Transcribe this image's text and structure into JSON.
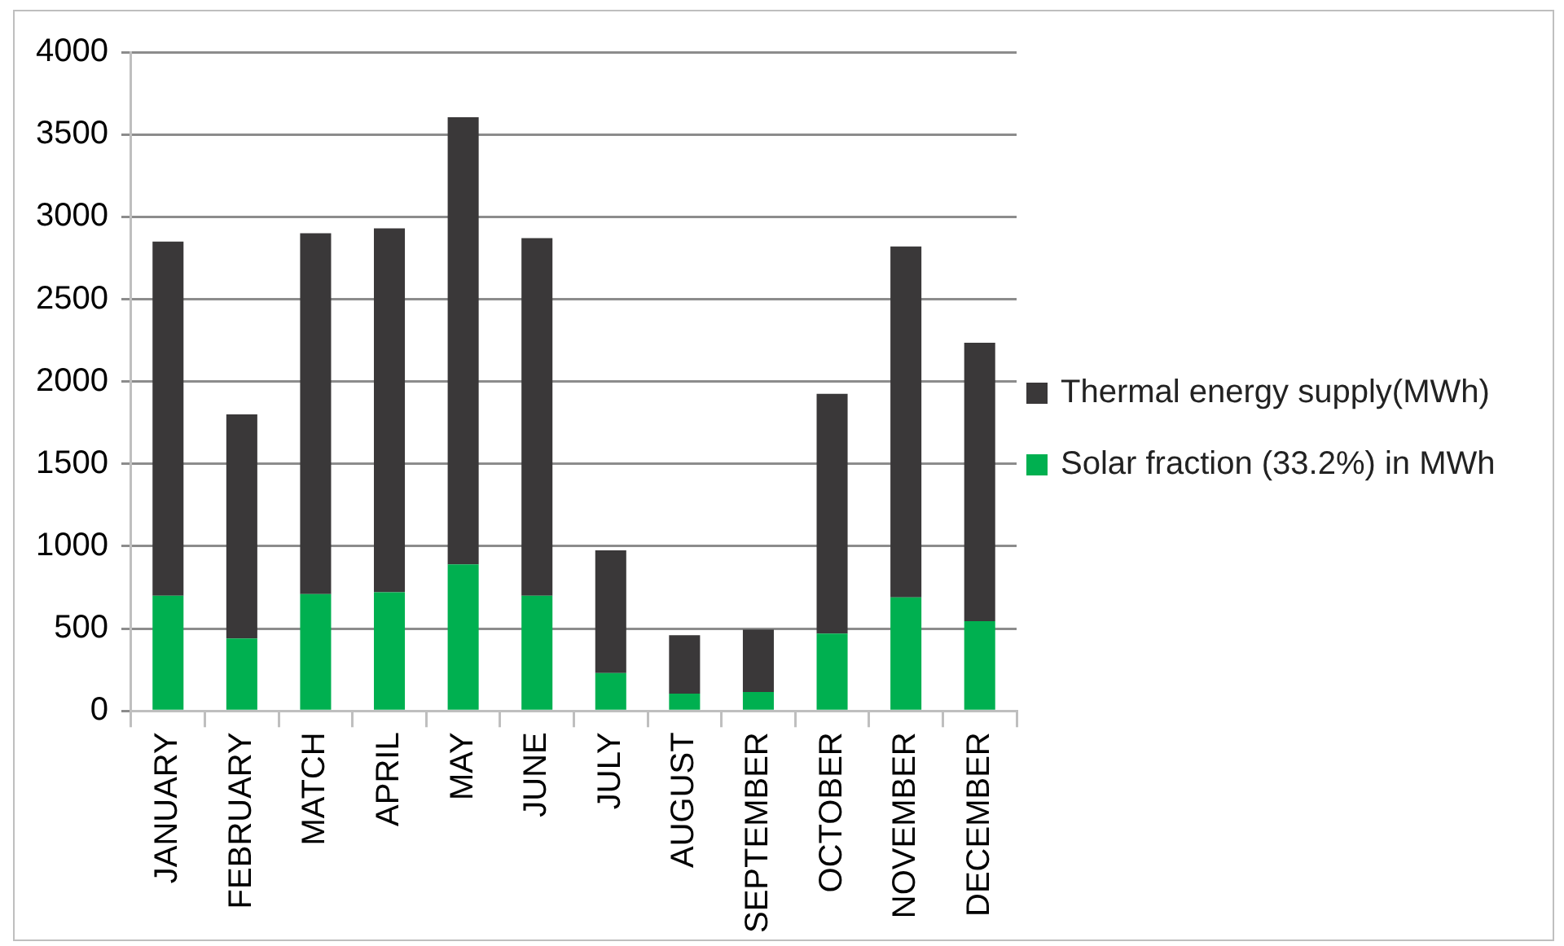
{
  "chart_data": {
    "type": "bar",
    "stacked": true,
    "categories": [
      "JANUARY",
      "FEBRUARY",
      "MATCH",
      "APRIL",
      "MAY",
      "JUNE",
      "JULY",
      "AUGUST",
      "SEPTEMBER",
      "OCTOBER",
      "NOVEMBER",
      "DECEMBER"
    ],
    "series": [
      {
        "name": "Solar fraction (33.2%) in MWh",
        "color": "#00b050",
        "values": [
          700,
          440,
          710,
          720,
          890,
          700,
          230,
          105,
          115,
          470,
          690,
          545
        ]
      },
      {
        "name": "Thermal energy supply(MWh)",
        "color": "#3a3839",
        "values": [
          2150,
          1360,
          2190,
          2210,
          2715,
          2170,
          745,
          355,
          380,
          1455,
          2130,
          1690
        ]
      }
    ],
    "ylim": [
      0,
      4000
    ],
    "yticks": [
      0,
      500,
      1000,
      1500,
      2000,
      2500,
      3000,
      3500,
      4000
    ],
    "grid": "y",
    "legend": "right"
  }
}
